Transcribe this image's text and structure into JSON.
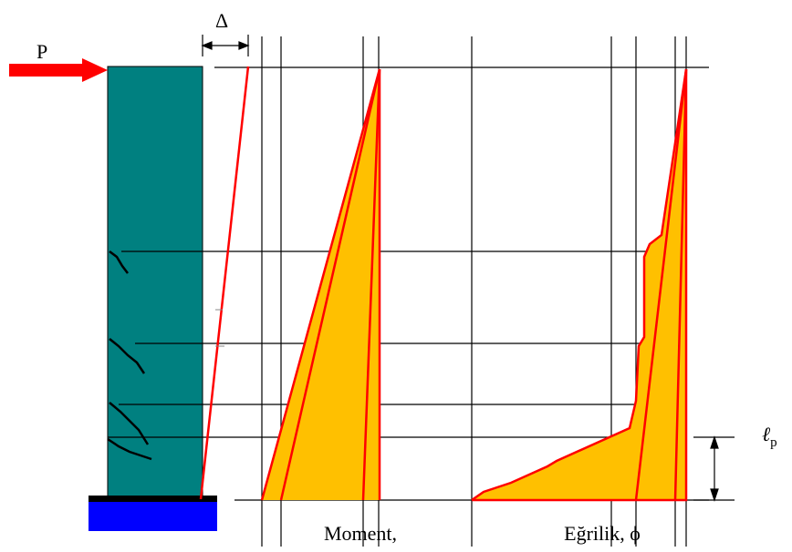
{
  "labels": {
    "delta": "Δ",
    "load": "P",
    "moment": "Moment,",
    "curvature": "Eğrilik, ϕ",
    "plastic_length": "ℓ",
    "plastic_length_sub": "p"
  }
}
